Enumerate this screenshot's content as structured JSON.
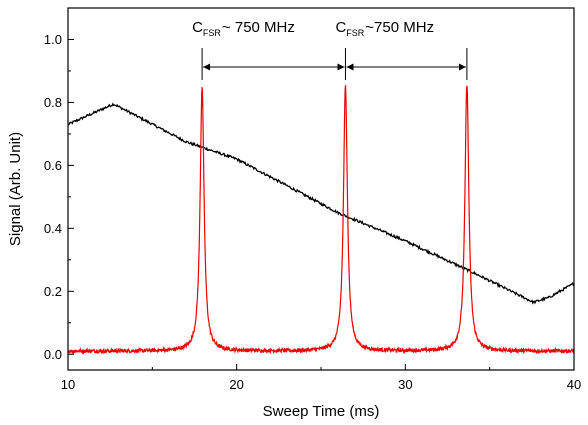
{
  "chart_data": {
    "type": "line",
    "title": "",
    "xlabel": "Sweep Time  (ms)",
    "ylabel": "Signal (Arb. Unit)",
    "xlim": [
      10,
      40
    ],
    "ylim": [
      -0.05,
      1.1
    ],
    "x_ticks": [
      10,
      20,
      30,
      40
    ],
    "x_tick_labels": [
      "10",
      "20",
      "30",
      "40"
    ],
    "y_ticks": [
      0.0,
      0.2,
      0.4,
      0.6,
      0.8,
      1.0
    ],
    "y_tick_labels": [
      "0.0",
      "0.2",
      "0.4",
      "0.6",
      "0.8",
      "1.0"
    ],
    "grid": false,
    "legend": "none",
    "series": [
      {
        "color": "#000000",
        "points": [
          [
            10,
            0.73
          ],
          [
            12.7,
            0.795
          ],
          [
            17,
            0.675
          ],
          [
            20,
            0.62
          ],
          [
            26,
            0.45
          ],
          [
            30,
            0.36
          ],
          [
            34,
            0.26
          ],
          [
            37.6,
            0.165
          ],
          [
            38.5,
            0.18
          ],
          [
            40,
            0.225
          ]
        ]
      },
      {
        "color": "#ee0000",
        "baseline": 0.01,
        "peaks": [
          {
            "x": 17.95,
            "height": 0.85,
            "width": 0.28
          },
          {
            "x": 26.45,
            "height": 0.855,
            "width": 0.28
          },
          {
            "x": 33.65,
            "height": 0.86,
            "width": 0.28
          }
        ]
      }
    ],
    "annotations": [
      {
        "main": "C",
        "sub": "FSR",
        "rest": "~ 750 MHz",
        "from_x": 17.95,
        "to_x": 26.45,
        "y": 1.0
      },
      {
        "main": "C",
        "sub": "FSR",
        "rest": "~750 MHz",
        "from_x": 26.45,
        "to_x": 33.65,
        "y": 1.0
      }
    ]
  }
}
